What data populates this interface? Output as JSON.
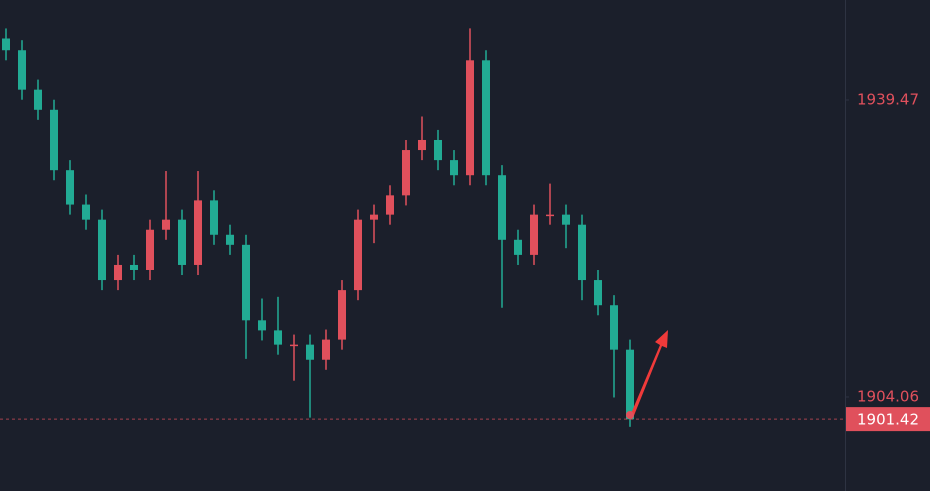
{
  "chart_data": {
    "type": "candlestick",
    "open": [
      1946.8,
      1945.4,
      1940.7,
      1938.3,
      1931.1,
      1927.0,
      1925.2,
      1918.0,
      1919.8,
      1919.2,
      1924.0,
      1925.2,
      1919.8,
      1927.5,
      1923.4,
      1922.2,
      1913.2,
      1912.0,
      1910.3,
      1910.3,
      1908.5,
      1910.9,
      1916.8,
      1925.2,
      1925.8,
      1928.1,
      1933.5,
      1934.7,
      1932.3,
      1930.5,
      1944.2,
      1930.5,
      1922.8,
      1921.0,
      1925.8,
      1925.8,
      1924.6,
      1918.0,
      1915.0,
      1909.7
    ],
    "high": [
      1948.0,
      1946.6,
      1941.9,
      1939.5,
      1932.3,
      1928.2,
      1926.4,
      1921.0,
      1921.0,
      1925.2,
      1931.0,
      1926.4,
      1931.0,
      1928.7,
      1924.6,
      1923.4,
      1915.8,
      1916.0,
      1911.5,
      1911.5,
      1912.1,
      1918.0,
      1926.4,
      1927.0,
      1929.3,
      1934.7,
      1937.5,
      1935.9,
      1933.5,
      1948.0,
      1945.4,
      1931.7,
      1924.0,
      1927.0,
      1929.5,
      1927.0,
      1925.8,
      1919.2,
      1916.2,
      1910.9
    ],
    "low": [
      1944.2,
      1939.5,
      1937.1,
      1929.9,
      1925.8,
      1924.0,
      1916.8,
      1916.8,
      1918.0,
      1918.0,
      1922.8,
      1918.6,
      1918.6,
      1922.2,
      1921.0,
      1908.6,
      1910.8,
      1909.1,
      1906.0,
      1901.6,
      1907.3,
      1909.7,
      1915.6,
      1922.4,
      1924.6,
      1926.9,
      1932.3,
      1931.1,
      1929.3,
      1929.3,
      1929.3,
      1914.7,
      1919.8,
      1919.8,
      1924.6,
      1921.8,
      1915.6,
      1913.8,
      1904.0,
      1900.5
    ],
    "close": [
      1945.4,
      1940.7,
      1938.3,
      1931.1,
      1927.0,
      1925.2,
      1918.0,
      1919.8,
      1919.2,
      1924.0,
      1925.2,
      1919.8,
      1927.5,
      1923.4,
      1922.2,
      1913.2,
      1912.0,
      1910.3,
      1910.3,
      1908.5,
      1910.9,
      1916.8,
      1925.2,
      1925.8,
      1928.1,
      1933.5,
      1934.7,
      1932.3,
      1930.5,
      1944.2,
      1930.5,
      1922.8,
      1921.0,
      1925.8,
      1925.8,
      1924.6,
      1918.0,
      1915.0,
      1909.7,
      1901.4
    ],
    "up_color": "#e0505c",
    "down_color": "#22ab94",
    "ylim": [
      1892.85,
      1951.39
    ],
    "yticks": [
      1939.47,
      1904.06
    ],
    "last_price": 1901.42
  }
}
